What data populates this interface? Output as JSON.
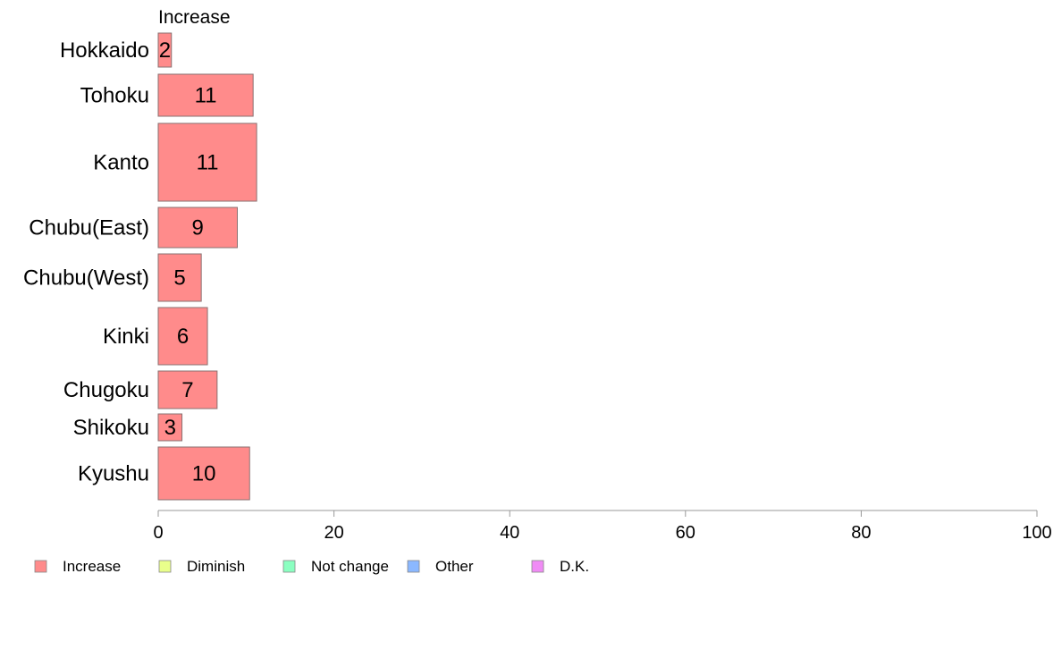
{
  "chart_data": {
    "type": "bar",
    "orientation": "horizontal",
    "panel_title": "Increase",
    "categories": [
      "Hokkaido",
      "Tohoku",
      "Kanto",
      "Chubu(East)",
      "Chubu(West)",
      "Kinki",
      "Chugoku",
      "Shikoku",
      "Kyushu"
    ],
    "series": [
      {
        "name": "Increase",
        "color": "#ff8b8b",
        "values": [
          1.5,
          10.8,
          11.2,
          9.0,
          4.9,
          5.6,
          6.7,
          2.7,
          10.4
        ],
        "labels": [
          "2",
          "11",
          "11",
          "9",
          "5",
          "6",
          "7",
          "3",
          "10"
        ]
      }
    ],
    "xlim": [
      0,
      100
    ],
    "xticks": [
      "0",
      "20",
      "40",
      "60",
      "80",
      "100"
    ],
    "grid": false,
    "legend": {
      "placement": "bottom-left",
      "items": [
        {
          "label": "Increase",
          "color": "#ff8b8b"
        },
        {
          "label": "Diminish",
          "color": "#e9ff8b"
        },
        {
          "label": "Not change",
          "color": "#8bffc1"
        },
        {
          "label": "Other",
          "color": "#8bb8ff"
        },
        {
          "label": "D.K.",
          "color": "#f08bf5"
        }
      ]
    }
  }
}
